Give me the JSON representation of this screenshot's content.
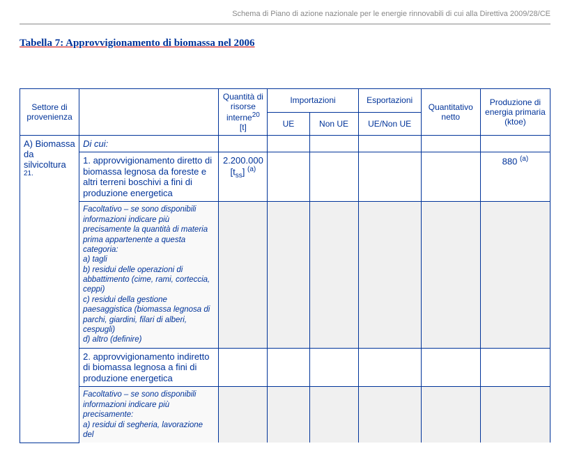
{
  "header": {
    "running": "Schema di Piano di azione nazionale per le energie rinnovabili di cui alla Direttiva 2009/28/CE"
  },
  "title": "Tabella 7: Approvvigionamento di biomassa nel 2006",
  "columns": {
    "sector": "Settore di provenienza",
    "qty_line1": "Quantità di risorse interne",
    "qty_foot": "20",
    "qty_unit": "[t]",
    "imports": "Importazioni",
    "imp_ue": "UE",
    "imp_nonue": "Non UE",
    "exports": "Esportazioni",
    "exp_sub": "UE/Non UE",
    "net": "Quantitativo netto",
    "prod": "Produzione di energia primaria (ktoe)"
  },
  "sectionA": {
    "label": "A) Biomassa da silvicoltura",
    "foot": "21",
    "di_cui": "Di cui:",
    "item1": {
      "desc": "1. approvvigionamento diretto di biomassa legnosa da foreste e altri terreni boschivi a fini di produzione energetica",
      "qty_value": "2.200.000",
      "qty_unit_pre": "[t",
      "qty_unit_sub": "ss",
      "qty_unit_post": "]",
      "qty_sup": "(a)",
      "prod_value": "880",
      "prod_sup": "(a)"
    },
    "item1_fac": {
      "intro": "Facoltativo – se sono disponibili informazioni indicare più precisamente la quantità di materia prima appartenente a questa categoria:",
      "a": "a) tagli",
      "b": "b) residui delle operazioni di abbattimento (cime, rami, corteccia, ceppi)",
      "c": "c) residui della gestione paesaggistica (biomassa legnosa di parchi, giardini, filari di alberi, cespugli)",
      "d": "d) altro (definire)"
    },
    "item2": {
      "desc": "2. approvvigionamento indiretto di biomassa legnosa a fini di produzione energetica"
    },
    "item2_fac": {
      "intro": "Facoltativo – se sono disponibili informazioni indicare più precisamente:",
      "a_partial": "a) residui di segheria, lavorazione del"
    }
  }
}
